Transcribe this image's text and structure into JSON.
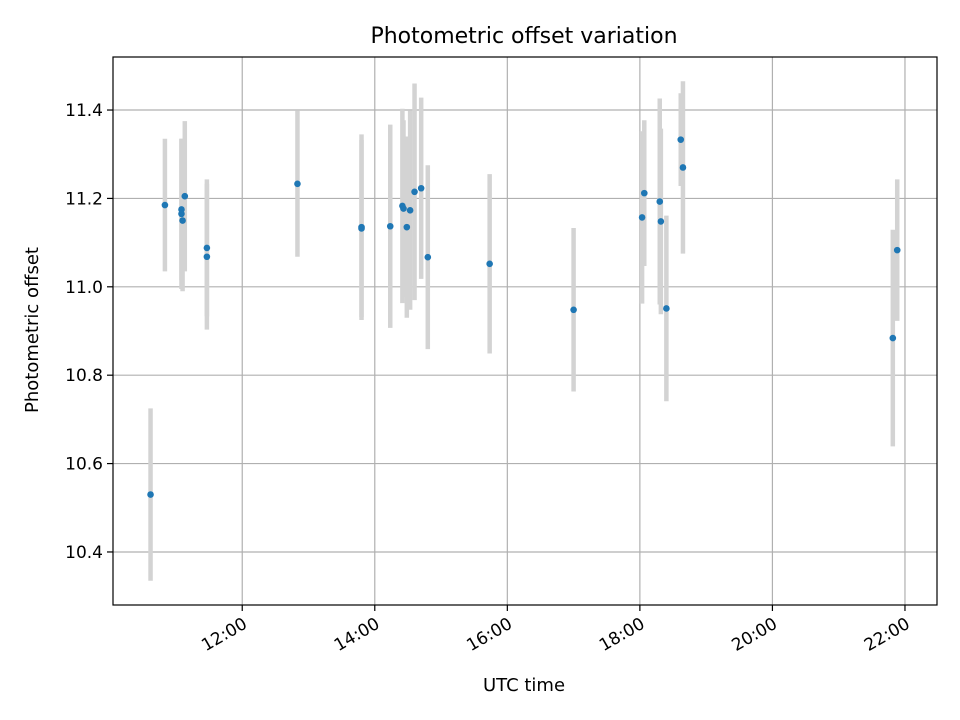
{
  "chart_data": {
    "type": "scatter",
    "title": "Photometric offset variation",
    "xlabel": "UTC time",
    "ylabel": "Photometric offset",
    "x_unit": "time of day (UTC, HH:MM)",
    "xlim": [
      "10:03",
      "22:29"
    ],
    "ylim": [
      10.28,
      11.52
    ],
    "x_ticks": [
      "12:00",
      "14:00",
      "16:00",
      "18:00",
      "20:00",
      "22:00"
    ],
    "y_ticks": [
      "10.4",
      "10.6",
      "10.8",
      "11.0",
      "11.2",
      "11.4"
    ],
    "grid": true,
    "colors": {
      "points": "#1f77b4",
      "errorbars": "#d3d3d3",
      "grid": "#b0b0b0"
    },
    "points": [
      {
        "x": "10:37",
        "y": 10.53,
        "err": 0.195
      },
      {
        "x": "10:50",
        "y": 11.185,
        "err": 0.15
      },
      {
        "x": "11:05",
        "y": 11.175,
        "err": 0.16
      },
      {
        "x": "11:05",
        "y": 11.165,
        "err": 0.17
      },
      {
        "x": "11:06",
        "y": 11.15,
        "err": 0.16
      },
      {
        "x": "11:08",
        "y": 11.205,
        "err": 0.17
      },
      {
        "x": "11:28",
        "y": 11.088,
        "err": 0.155
      },
      {
        "x": "11:28",
        "y": 11.068,
        "err": 0.165
      },
      {
        "x": "12:50",
        "y": 11.233,
        "err": 0.165
      },
      {
        "x": "13:48",
        "y": 11.135,
        "err": 0.21
      },
      {
        "x": "13:48",
        "y": 11.132,
        "err": 0.2
      },
      {
        "x": "14:14",
        "y": 11.137,
        "err": 0.23
      },
      {
        "x": "14:25",
        "y": 11.183,
        "err": 0.22
      },
      {
        "x": "14:26",
        "y": 11.177,
        "err": 0.2
      },
      {
        "x": "14:29",
        "y": 11.135,
        "err": 0.205
      },
      {
        "x": "14:32",
        "y": 11.173,
        "err": 0.225
      },
      {
        "x": "14:36",
        "y": 11.215,
        "err": 0.245
      },
      {
        "x": "14:42",
        "y": 11.223,
        "err": 0.205
      },
      {
        "x": "14:48",
        "y": 11.067,
        "err": 0.208
      },
      {
        "x": "15:44",
        "y": 11.052,
        "err": 0.203
      },
      {
        "x": "17:00",
        "y": 10.948,
        "err": 0.185
      },
      {
        "x": "18:02",
        "y": 11.157,
        "err": 0.195
      },
      {
        "x": "18:04",
        "y": 11.212,
        "err": 0.165
      },
      {
        "x": "18:18",
        "y": 11.193,
        "err": 0.233
      },
      {
        "x": "18:19",
        "y": 11.148,
        "err": 0.21
      },
      {
        "x": "18:24",
        "y": 10.951,
        "err": 0.21
      },
      {
        "x": "18:37",
        "y": 11.333,
        "err": 0.105
      },
      {
        "x": "18:39",
        "y": 11.27,
        "err": 0.195
      },
      {
        "x": "21:49",
        "y": 10.884,
        "err": 0.245
      },
      {
        "x": "21:53",
        "y": 11.083,
        "err": 0.16
      }
    ]
  }
}
